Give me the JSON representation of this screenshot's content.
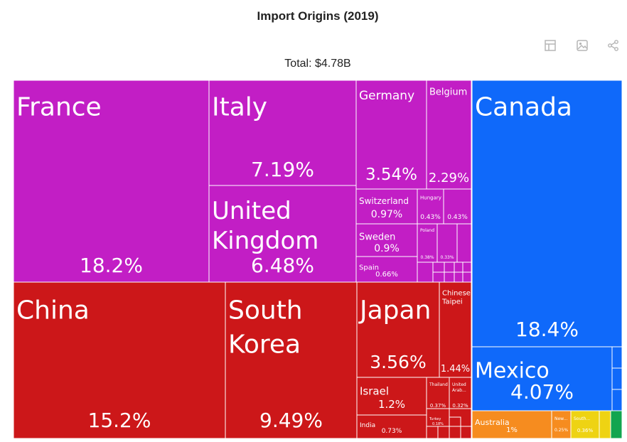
{
  "title": "Import Origins (2019)",
  "total_label": "Total: $4.78B",
  "toolbar": {
    "icons": [
      "table-icon",
      "image-icon",
      "share-icon"
    ]
  },
  "colors": {
    "europe": "#c21ec5",
    "asia": "#cc1719",
    "north_america": "#0f69fa",
    "oceania": "#f68c1f",
    "africa": "#eed313",
    "south_america": "#12a54f"
  },
  "chart_data": {
    "type": "treemap",
    "title": "Import Origins (2019)",
    "total": "$4.78B",
    "groups": [
      {
        "group": "europe",
        "items": [
          {
            "name": "France",
            "share": "18.2%",
            "value": 18.2
          },
          {
            "name": "Italy",
            "share": "7.19%",
            "value": 7.19
          },
          {
            "name": "United Kingdom",
            "share": "6.48%",
            "value": 6.48
          },
          {
            "name": "Germany",
            "share": "3.54%",
            "value": 3.54
          },
          {
            "name": "Belgium",
            "share": "2.29%",
            "value": 2.29
          },
          {
            "name": "Switzerland",
            "share": "0.97%",
            "value": 0.97
          },
          {
            "name": "Hungary",
            "share": "0.43%",
            "value": 0.43
          },
          {
            "name": "",
            "share": "0.43%",
            "value": 0.43
          },
          {
            "name": "Sweden",
            "share": "0.9%",
            "value": 0.9
          },
          {
            "name": "Poland",
            "share": "0.38%",
            "value": 0.38
          },
          {
            "name": "",
            "share": "0.33%",
            "value": 0.33
          },
          {
            "name": "Spain",
            "share": "0.66%",
            "value": 0.66
          }
        ]
      },
      {
        "group": "asia",
        "items": [
          {
            "name": "China",
            "share": "15.2%",
            "value": 15.2
          },
          {
            "name": "South Korea",
            "share": "9.49%",
            "value": 9.49
          },
          {
            "name": "Japan",
            "share": "3.56%",
            "value": 3.56
          },
          {
            "name": "Chinese Taipei",
            "share": "1.44%",
            "value": 1.44
          },
          {
            "name": "Israel",
            "share": "1.2%",
            "value": 1.2
          },
          {
            "name": "India",
            "share": "0.73%",
            "value": 0.73
          },
          {
            "name": "Thailand",
            "share": "0.37%",
            "value": 0.37
          },
          {
            "name": "United Arab...",
            "share": "0.32%",
            "value": 0.32
          },
          {
            "name": "Turkey",
            "share": "0.18%",
            "value": 0.18
          }
        ]
      },
      {
        "group": "north_america",
        "items": [
          {
            "name": "Canada",
            "share": "18.4%",
            "value": 18.4
          },
          {
            "name": "Mexico",
            "share": "4.07%",
            "value": 4.07
          }
        ]
      },
      {
        "group": "oceania",
        "items": [
          {
            "name": "Australia",
            "share": "1%",
            "value": 1.0
          },
          {
            "name": "New...",
            "share": "0.25%",
            "value": 0.25
          }
        ]
      },
      {
        "group": "africa",
        "items": [
          {
            "name": "South...",
            "share": "0.36%",
            "value": 0.36
          }
        ]
      },
      {
        "group": "south_america",
        "items": []
      }
    ]
  }
}
